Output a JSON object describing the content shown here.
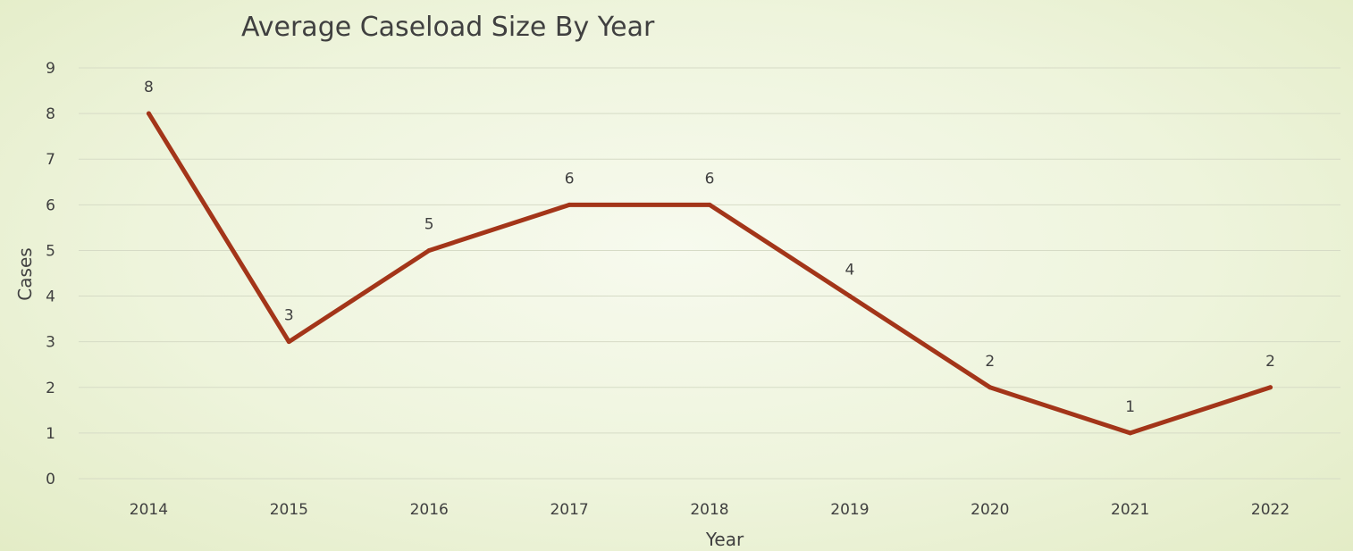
{
  "chart_data": {
    "type": "line",
    "title": "Average Caseload Size By Year",
    "xlabel": "Year",
    "ylabel": "Cases",
    "categories": [
      "2014",
      "2015",
      "2016",
      "2017",
      "2018",
      "2019",
      "2020",
      "2021",
      "2022"
    ],
    "series": [
      {
        "values": [
          8,
          3,
          5,
          6,
          6,
          4,
          2,
          1,
          2
        ]
      }
    ],
    "data_labels": [
      "8",
      "3",
      "5",
      "6",
      "6",
      "4",
      "2",
      "1",
      "2"
    ],
    "y_ticks": [
      "0",
      "1",
      "2",
      "3",
      "4",
      "5",
      "6",
      "7",
      "8",
      "9"
    ],
    "ylim": [
      0,
      9
    ],
    "grid": true,
    "legend": "none",
    "colors": {
      "line": "#a33519",
      "grid": "#d6dbc6",
      "text": "#404040"
    }
  }
}
